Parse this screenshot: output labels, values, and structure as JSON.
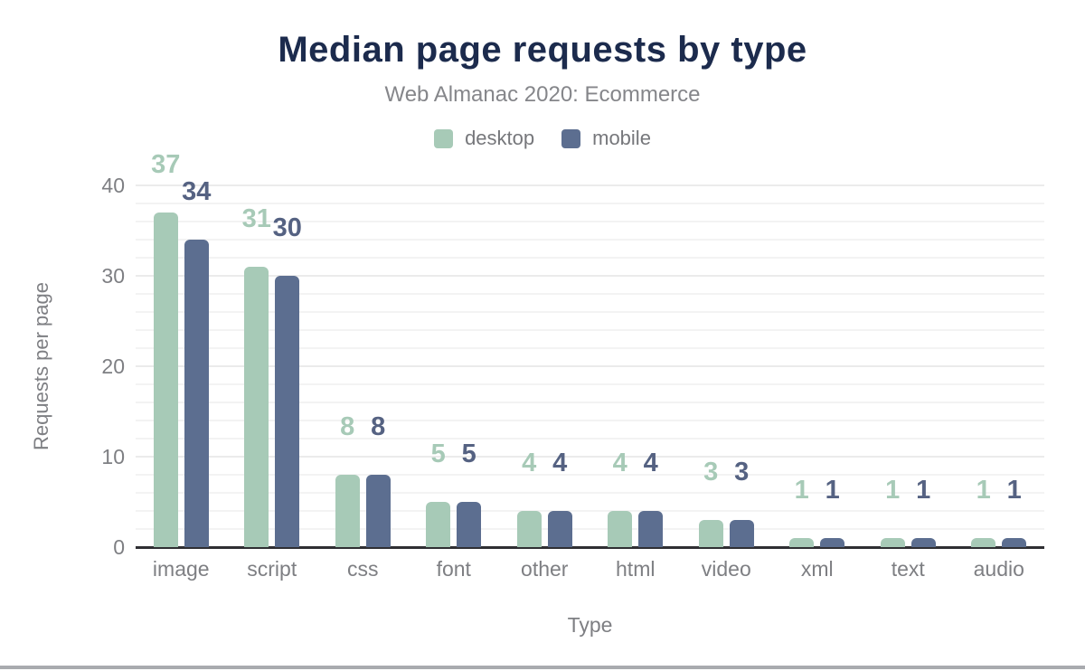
{
  "header": {
    "title": "Median page requests by type",
    "subtitle": "Web Almanac 2020: Ecommerce"
  },
  "legend": {
    "items": [
      {
        "label": "desktop",
        "color": "#a7cab7"
      },
      {
        "label": "mobile",
        "color": "#5c6e90"
      }
    ]
  },
  "chart_data": {
    "type": "bar",
    "title": "Median page requests by type",
    "subtitle": "Web Almanac 2020: Ecommerce",
    "categories": [
      "image",
      "script",
      "css",
      "font",
      "other",
      "html",
      "video",
      "xml",
      "text",
      "audio"
    ],
    "series": [
      {
        "name": "desktop",
        "color": "#a7cab7",
        "label_color": "#a7cab7",
        "values": [
          37,
          31,
          8,
          5,
          4,
          4,
          3,
          1,
          1,
          1
        ]
      },
      {
        "name": "mobile",
        "color": "#5c6e90",
        "label_color": "#556282",
        "values": [
          34,
          30,
          8,
          5,
          4,
          4,
          3,
          1,
          1,
          1
        ]
      }
    ],
    "xlabel": "Type",
    "ylabel": "Requests per page",
    "yticks": [
      0,
      10,
      20,
      30,
      40
    ],
    "ylim": [
      0,
      40
    ],
    "grid": {
      "minor_step": 2,
      "major_step": 10,
      "minor_color": "#f3f3f3",
      "major_color": "#ebebeb"
    },
    "legend_position": "top",
    "value_labels": true
  },
  "colors": {
    "title": "#1c2b4d",
    "subtitle": "#85868a",
    "axis_text": "#7e7f83",
    "legend_text": "#76777b",
    "axis_line": "#2f2f33",
    "bottom_bar": "#a9abaf"
  }
}
